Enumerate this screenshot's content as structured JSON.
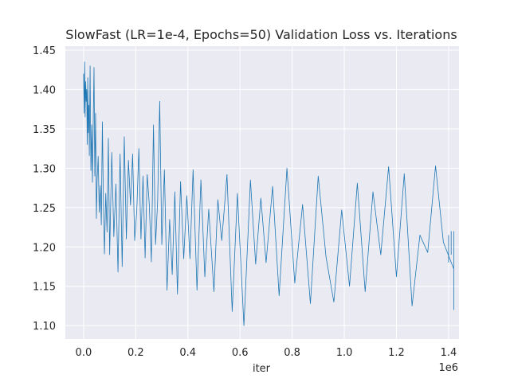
{
  "chart_data": {
    "type": "line",
    "title": "SlowFast (LR=1e-4, Epochs=50) Validation Loss vs. Iterations",
    "xlabel": "iter",
    "ylabel": "",
    "x_offset_label": "1e6",
    "xlim": [
      -0.07,
      1.44
    ],
    "ylim": [
      1.083,
      1.455
    ],
    "x_ticks": [
      0.0,
      0.2,
      0.4,
      0.6,
      0.8,
      1.0,
      1.2,
      1.4
    ],
    "x_tick_labels": [
      "0.0",
      "0.2",
      "0.4",
      "0.6",
      "0.8",
      "1.0",
      "1.2",
      "1.4"
    ],
    "y_ticks": [
      1.1,
      1.15,
      1.2,
      1.25,
      1.3,
      1.35,
      1.4,
      1.45
    ],
    "y_tick_labels": [
      "1.10",
      "1.15",
      "1.20",
      "1.25",
      "1.30",
      "1.35",
      "1.40",
      "1.45"
    ],
    "grid": true,
    "background": "#eaeaf2",
    "line_color": "#1f77b4",
    "series": [
      {
        "x": [
          0.0,
          0.002,
          0.004,
          0.006,
          0.008,
          0.01,
          0.012,
          0.014,
          0.016,
          0.018,
          0.02,
          0.022,
          0.025,
          0.028,
          0.031,
          0.034,
          0.037,
          0.04,
          0.043,
          0.046,
          0.049,
          0.052,
          0.056,
          0.06,
          0.064,
          0.068,
          0.072,
          0.076,
          0.08,
          0.085,
          0.09,
          0.095,
          0.1,
          0.108,
          0.116,
          0.124,
          0.132,
          0.14,
          0.148,
          0.156,
          0.164,
          0.172,
          0.18,
          0.188,
          0.196,
          0.204,
          0.212,
          0.22,
          0.228,
          0.236,
          0.244,
          0.252,
          0.26,
          0.268,
          0.276,
          0.284,
          0.292,
          0.3,
          0.31,
          0.32,
          0.33,
          0.34,
          0.35,
          0.36,
          0.372,
          0.384,
          0.396,
          0.408,
          0.42,
          0.435,
          0.45,
          0.465,
          0.48,
          0.5,
          0.515,
          0.53,
          0.55,
          0.57,
          0.59,
          0.615,
          0.64,
          0.66,
          0.68,
          0.7,
          0.725,
          0.75,
          0.78,
          0.81,
          0.84,
          0.87,
          0.9,
          0.93,
          0.96,
          0.99,
          1.02,
          1.05,
          1.08,
          1.11,
          1.14,
          1.17,
          1.2,
          1.23,
          1.26,
          1.29,
          1.32,
          1.35,
          1.38,
          1.42
        ],
        "y": [
          1.42,
          1.37,
          1.435,
          1.365,
          1.41,
          1.385,
          1.4,
          1.33,
          1.415,
          1.345,
          1.38,
          1.316,
          1.43,
          1.297,
          1.355,
          1.282,
          1.36,
          1.428,
          1.29,
          1.37,
          1.236,
          1.285,
          1.315,
          1.244,
          1.278,
          1.228,
          1.359,
          1.258,
          1.191,
          1.268,
          1.219,
          1.338,
          1.19,
          1.32,
          1.213,
          1.28,
          1.168,
          1.318,
          1.175,
          1.34,
          1.21,
          1.31,
          1.253,
          1.318,
          1.208,
          1.246,
          1.325,
          1.21,
          1.29,
          1.186,
          1.292,
          1.254,
          1.181,
          1.355,
          1.203,
          1.258,
          1.385,
          1.203,
          1.298,
          1.145,
          1.235,
          1.165,
          1.27,
          1.14,
          1.283,
          1.185,
          1.265,
          1.185,
          1.298,
          1.145,
          1.285,
          1.162,
          1.248,
          1.143,
          1.26,
          1.208,
          1.292,
          1.118,
          1.268,
          1.1,
          1.285,
          1.178,
          1.262,
          1.18,
          1.277,
          1.138,
          1.3,
          1.154,
          1.254,
          1.128,
          1.29,
          1.187,
          1.13,
          1.247,
          1.15,
          1.281,
          1.143,
          1.27,
          1.19,
          1.302,
          1.162,
          1.293,
          1.125,
          1.215,
          1.193,
          1.303,
          1.206,
          1.172
        ]
      },
      {
        "x": [
          0.0,
          0.0
        ],
        "y": [
          1.42,
          1.42
        ]
      }
    ],
    "spikes": [
      [
        1.4,
        1.18,
        1.215
      ],
      [
        1.41,
        1.19,
        1.22
      ],
      [
        1.42,
        1.12,
        1.22
      ]
    ]
  }
}
